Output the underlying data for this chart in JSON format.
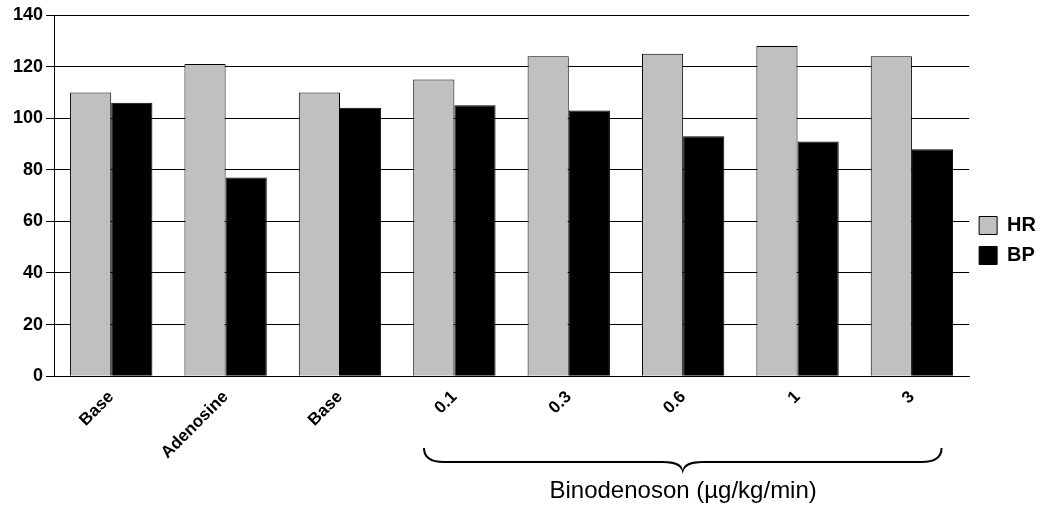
{
  "chart_data": {
    "type": "bar",
    "categories": [
      "Base",
      "Adenosine",
      "Base",
      "0.1",
      "0.3",
      "0.6",
      "1",
      "3"
    ],
    "series": [
      {
        "name": "HR",
        "color": "#c0c0c0",
        "values": [
          110,
          121,
          110,
          115,
          124,
          125,
          128,
          124
        ]
      },
      {
        "name": "BP",
        "color": "#000000",
        "values": [
          106,
          77,
          104,
          105,
          103,
          93,
          91,
          88
        ]
      }
    ],
    "ylim": [
      0,
      140
    ],
    "yticks": [
      0,
      20,
      40,
      60,
      80,
      100,
      120,
      140
    ],
    "grid": "y",
    "legend": "right",
    "annotations": [
      "Binodenoson (µg/kg/min)"
    ]
  }
}
